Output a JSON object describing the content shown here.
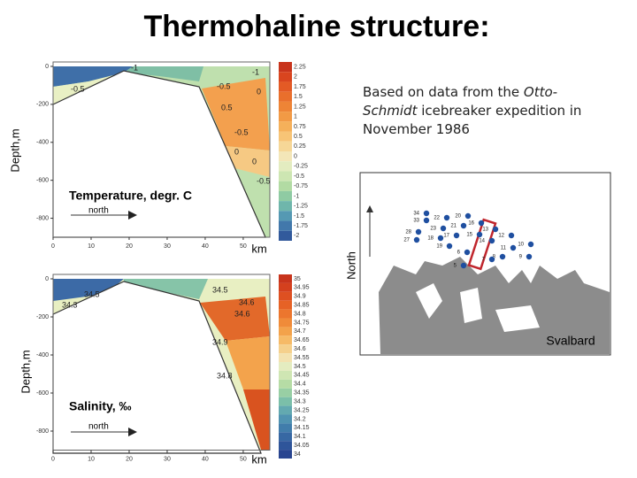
{
  "title": "Thermohaline structure:",
  "note": {
    "before": "Based on data from the",
    "italic": "Otto-Schmidt",
    "after": "icebreaker expedition in November 1986"
  },
  "chart_data": [
    {
      "type": "contour",
      "title": "Temperature, degr. C",
      "y_label": "Depth,m",
      "x_label": "km",
      "direction_label": "north",
      "xlim": [
        0,
        57
      ],
      "ylim": [
        -900,
        0
      ],
      "xticks": [
        0,
        10,
        20,
        30,
        40,
        50
      ],
      "yticks": [
        0,
        -200,
        -400,
        -600,
        -800
      ],
      "colorbar": {
        "levels": [
          2.25,
          2,
          1.75,
          1.5,
          1.25,
          1,
          0.75,
          0.5,
          0.25,
          0,
          -0.25,
          -0.5,
          -0.75,
          -1,
          -1.25,
          -1.5,
          -1.75,
          -2
        ],
        "colors": [
          "#c8341c",
          "#d9451f",
          "#e35a25",
          "#e96f2c",
          "#ee8436",
          "#f29a45",
          "#f5b05a",
          "#f7c476",
          "#f6d797",
          "#f3e6b8",
          "#e3ecc0",
          "#cde6b2",
          "#b2dba3",
          "#8fcba3",
          "#6fb6ab",
          "#5599b3",
          "#4278ab",
          "#325a9c"
        ]
      },
      "contour_labels": [
        "-0.5",
        "-1",
        "-1",
        "-0.5",
        "0",
        "0.5",
        "-0.5",
        "0",
        "0",
        "-0.5"
      ]
    },
    {
      "type": "contour",
      "title": "Salinity, ‰",
      "y_label": "Depth,m",
      "x_label": "km",
      "direction_label": "north",
      "xlim": [
        0,
        57
      ],
      "ylim": [
        -900,
        0
      ],
      "xticks": [
        0,
        10,
        20,
        30,
        40,
        50
      ],
      "yticks": [
        0,
        -200,
        -400,
        -600,
        -800
      ],
      "colorbar": {
        "levels": [
          35,
          34.95,
          34.9,
          34.85,
          34.8,
          34.75,
          34.7,
          34.65,
          34.6,
          34.55,
          34.5,
          34.45,
          34.4,
          34.35,
          34.3,
          34.25,
          34.2,
          34.15,
          34.1,
          34.05,
          34
        ],
        "colors": [
          "#c8341c",
          "#d4401e",
          "#de5021",
          "#e66226",
          "#ec762e",
          "#f08b39",
          "#f3a24b",
          "#f6ba67",
          "#f5d08c",
          "#f3e2b0",
          "#e4ecc0",
          "#cfe6b3",
          "#b6dca5",
          "#98cfa4",
          "#7bbfa9",
          "#63a9b0",
          "#5093b1",
          "#417dab",
          "#3768a3",
          "#2f559a",
          "#294590"
        ]
      },
      "contour_labels": [
        "34.5",
        "34.3",
        "34.5",
        "34.6",
        "34.6",
        "34.9",
        "34.8"
      ]
    }
  ],
  "map": {
    "y_label": "North",
    "place_label": "Svalbard",
    "stations": [
      "34",
      "33",
      "28",
      "27",
      "22",
      "23",
      "20",
      "21",
      "18",
      "19",
      "17",
      "16",
      "15",
      "14",
      "13",
      "12",
      "11",
      "10",
      "9",
      "8",
      "7",
      "6",
      "5"
    ]
  }
}
